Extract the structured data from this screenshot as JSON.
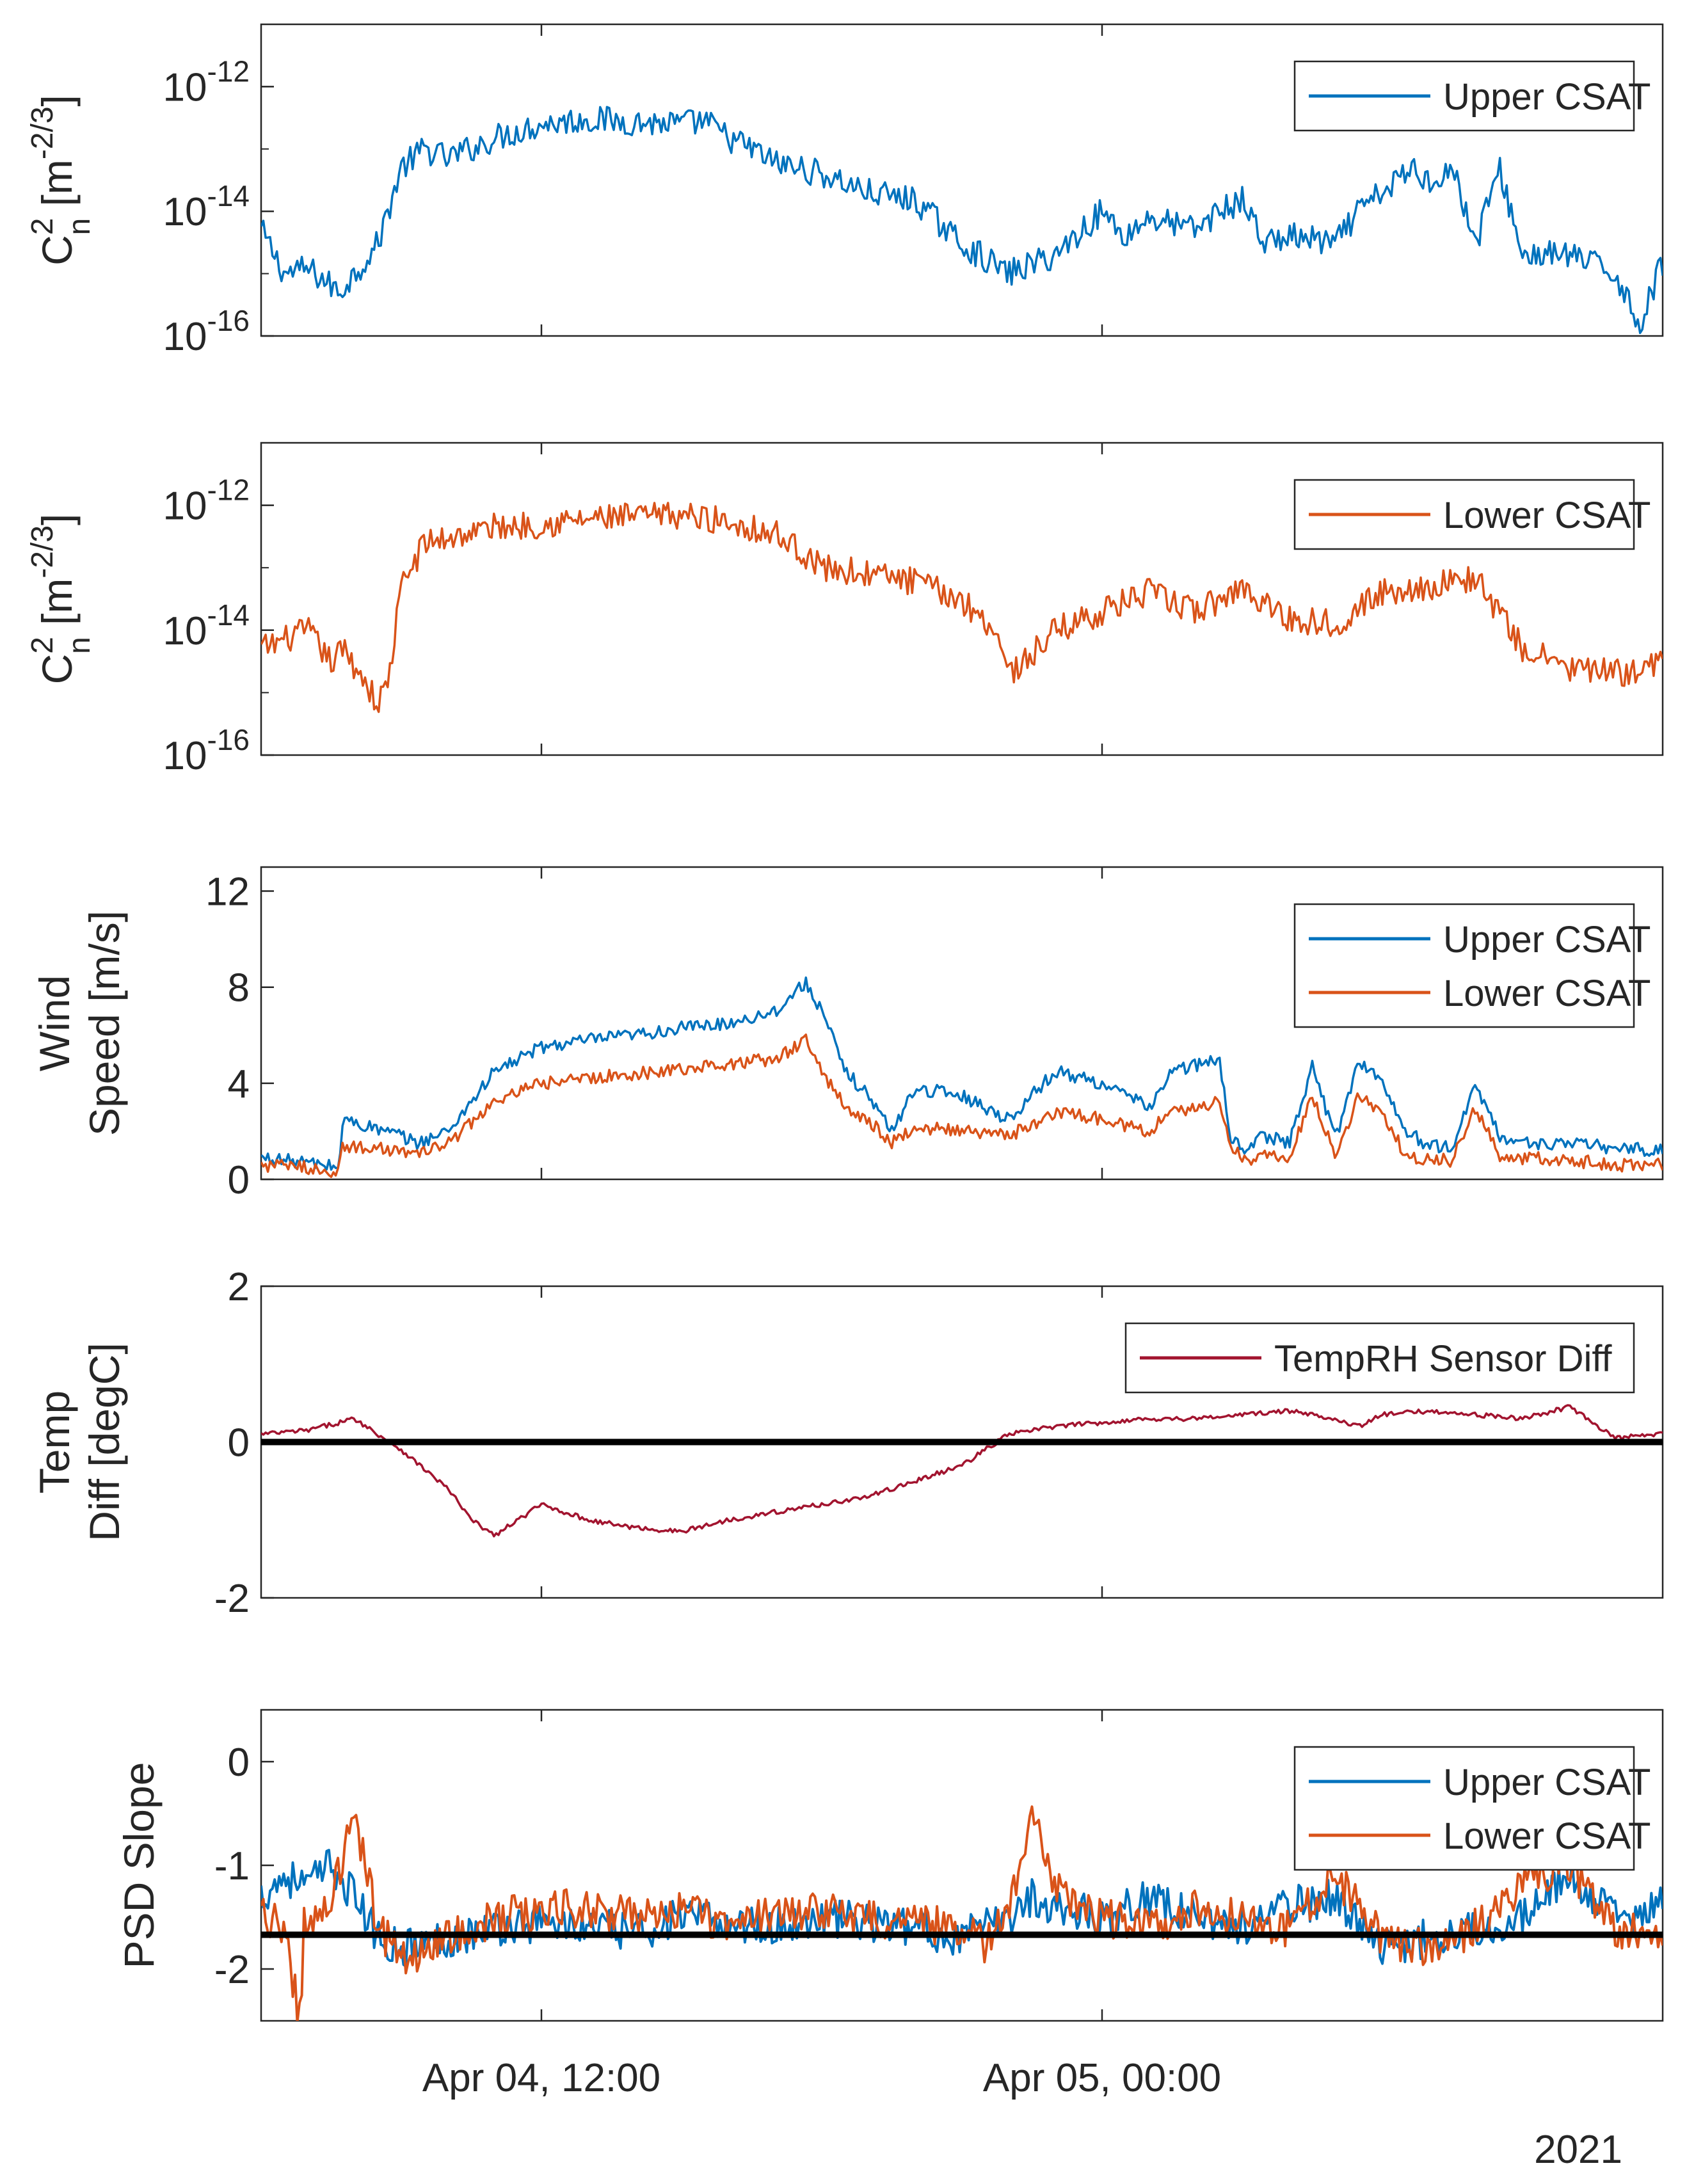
{
  "figure": {
    "year_label": "2021",
    "x_axis": {
      "start": "2021-04-04T06:00",
      "end": "2021-04-05T12:00",
      "ticks": [
        {
          "time": "2021-04-04T12:00",
          "label": "Apr 04, 12:00"
        },
        {
          "time": "2021-04-05T00:00",
          "label": "Apr 05, 00:00"
        }
      ]
    }
  },
  "chart_data": [
    {
      "type": "line",
      "ylabel": "C²ₙ [m⁻²ᐟ³]",
      "ylabel_parts": {
        "base": "C",
        "sup": "2",
        "sub": "n",
        "unit_open": " [m",
        "unit_sup": "-2/3",
        "unit_close": "]"
      },
      "yscale": "log",
      "ylim": [
        1e-16,
        1e-11
      ],
      "yticks": [
        {
          "value": 1e-12,
          "base": "10",
          "exp": "-12"
        },
        {
          "value": 1e-14,
          "base": "10",
          "exp": "-14"
        },
        {
          "value": 1e-16,
          "base": "10",
          "exp": "-16"
        }
      ],
      "legend": {
        "location": "top-right",
        "entries": [
          "Upper CSAT"
        ]
      },
      "series": [
        {
          "name": "Upper CSAT",
          "color": "#0072BD",
          "x": [
            "2021-04-04T06:00",
            "2021-04-04T06:30",
            "2021-04-04T07:00",
            "2021-04-04T07:20",
            "2021-04-04T07:40",
            "2021-04-04T08:00",
            "2021-04-04T08:30",
            "2021-04-04T09:00",
            "2021-04-04T09:30",
            "2021-04-04T10:00",
            "2021-04-04T11:00",
            "2021-04-04T12:00",
            "2021-04-04T13:00",
            "2021-04-04T14:00",
            "2021-04-04T15:00",
            "2021-04-04T15:30",
            "2021-04-04T16:00",
            "2021-04-04T16:30",
            "2021-04-04T17:00",
            "2021-04-04T18:00",
            "2021-04-04T19:00",
            "2021-04-04T20:00",
            "2021-04-04T21:00",
            "2021-04-04T22:00",
            "2021-04-04T23:00",
            "2021-04-05T00:00",
            "2021-04-05T00:30",
            "2021-04-05T01:00",
            "2021-04-05T02:00",
            "2021-04-05T02:30",
            "2021-04-05T03:00",
            "2021-04-05T03:30",
            "2021-04-05T04:00",
            "2021-04-05T05:00",
            "2021-04-05T05:30",
            "2021-04-05T06:00",
            "2021-04-05T06:40",
            "2021-04-05T07:00",
            "2021-04-05T07:30",
            "2021-04-05T08:00",
            "2021-04-05T08:30",
            "2021-04-05T09:00",
            "2021-04-05T10:00",
            "2021-04-05T11:00",
            "2021-04-05T11:30",
            "2021-04-05T12:00"
          ],
          "y": [
            5e-15,
            1e-15,
            1.2e-15,
            8e-16,
            5e-16,
            1e-15,
            3e-15,
            5e-14,
            1e-13,
            7e-14,
            1.5e-13,
            2.5e-13,
            3e-13,
            2.7e-13,
            2.5e-13,
            2.8e-13,
            1.5e-13,
            1e-13,
            6e-14,
            4e-14,
            2e-14,
            1.5e-14,
            3e-15,
            1e-15,
            2e-15,
            1e-14,
            4e-15,
            8e-15,
            5e-15,
            1e-14,
            1.5e-14,
            3e-15,
            4e-15,
            3e-15,
            1e-14,
            2e-14,
            5e-14,
            3e-14,
            5e-14,
            3e-15,
            5e-14,
            2e-15,
            2e-15,
            1e-15,
            1.5e-16,
            1.5e-15
          ]
        }
      ]
    },
    {
      "type": "line",
      "ylabel": "C²ₙ [m⁻²ᐟ³]",
      "ylabel_parts": {
        "base": "C",
        "sup": "2",
        "sub": "n",
        "unit_open": " [m",
        "unit_sup": "-2/3",
        "unit_close": "]"
      },
      "yscale": "log",
      "ylim": [
        1e-16,
        1e-11
      ],
      "yticks": [
        {
          "value": 1e-12,
          "base": "10",
          "exp": "-12"
        },
        {
          "value": 1e-14,
          "base": "10",
          "exp": "-14"
        },
        {
          "value": 1e-16,
          "base": "10",
          "exp": "-16"
        }
      ],
      "legend": {
        "location": "top-right",
        "entries": [
          "Lower CSAT"
        ]
      },
      "series": [
        {
          "name": "Lower CSAT",
          "color": "#D95319",
          "x": [
            "2021-04-04T06:00",
            "2021-04-04T06:30",
            "2021-04-04T07:00",
            "2021-04-04T07:30",
            "2021-04-04T07:45",
            "2021-04-04T08:15",
            "2021-04-04T08:30",
            "2021-04-04T08:45",
            "2021-04-04T09:00",
            "2021-04-04T09:30",
            "2021-04-04T10:00",
            "2021-04-04T11:00",
            "2021-04-04T12:00",
            "2021-04-04T13:00",
            "2021-04-04T14:00",
            "2021-04-04T15:00",
            "2021-04-04T16:00",
            "2021-04-04T17:00",
            "2021-04-04T17:30",
            "2021-04-04T18:00",
            "2021-04-04T19:00",
            "2021-04-04T20:00",
            "2021-04-04T21:00",
            "2021-04-04T21:45",
            "2021-04-04T22:00",
            "2021-04-04T22:30",
            "2021-04-04T23:00",
            "2021-04-05T00:00",
            "2021-04-05T01:00",
            "2021-04-05T02:00",
            "2021-04-05T02:30",
            "2021-04-05T03:00",
            "2021-04-05T04:00",
            "2021-04-05T05:00",
            "2021-04-05T06:00",
            "2021-04-05T07:00",
            "2021-04-05T08:00",
            "2021-04-05T09:00",
            "2021-04-05T10:00",
            "2021-04-05T11:00",
            "2021-04-05T12:00"
          ],
          "y": [
            5e-15,
            7e-15,
            1e-14,
            3e-15,
            5e-15,
            1.5e-15,
            6e-16,
            2e-15,
            5e-14,
            2.5e-13,
            3e-13,
            4.5e-13,
            5e-13,
            6e-13,
            6.5e-13,
            7e-13,
            5.5e-13,
            3.5e-13,
            2e-13,
            1e-13,
            8e-14,
            6e-14,
            3e-14,
            1e-14,
            2e-15,
            4e-15,
            1e-14,
            2e-14,
            4e-14,
            2e-14,
            3e-14,
            5e-14,
            1.5e-14,
            1.3e-14,
            4e-14,
            5e-14,
            7e-14,
            5e-15,
            2.5e-15,
            2e-15,
            3e-15
          ]
        }
      ]
    },
    {
      "type": "line",
      "ylabel_lines": [
        "Wind",
        "Speed [m/s]"
      ],
      "ylim": [
        0,
        13
      ],
      "yticks": [
        0,
        4,
        8,
        12
      ],
      "legend": {
        "location": "top-right",
        "entries": [
          "Upper CSAT",
          "Lower CSAT"
        ]
      },
      "series": [
        {
          "name": "Upper CSAT",
          "color": "#0072BD",
          "x": [
            "2021-04-04T06:00",
            "2021-04-04T07:00",
            "2021-04-04T07:40",
            "2021-04-04T07:45",
            "2021-04-04T09:00",
            "2021-04-04T09:20",
            "2021-04-04T10:00",
            "2021-04-04T11:00",
            "2021-04-04T12:00",
            "2021-04-04T13:00",
            "2021-04-04T14:00",
            "2021-04-04T15:00",
            "2021-04-04T16:00",
            "2021-04-04T17:00",
            "2021-04-04T17:40",
            "2021-04-04T18:00",
            "2021-04-04T18:30",
            "2021-04-04T19:00",
            "2021-04-04T19:30",
            "2021-04-04T20:00",
            "2021-04-04T21:00",
            "2021-04-04T22:00",
            "2021-04-04T23:00",
            "2021-04-05T00:00",
            "2021-04-05T01:00",
            "2021-04-05T01:30",
            "2021-04-05T02:30",
            "2021-04-05T02:45",
            "2021-04-05T03:00",
            "2021-04-05T03:30",
            "2021-04-05T04:00",
            "2021-04-05T04:30",
            "2021-04-05T05:00",
            "2021-04-05T05:30",
            "2021-04-05T06:00",
            "2021-04-05T06:30",
            "2021-04-05T07:00",
            "2021-04-05T07:30",
            "2021-04-05T08:00",
            "2021-04-05T08:30",
            "2021-04-05T09:00",
            "2021-04-05T10:00",
            "2021-04-05T11:00",
            "2021-04-05T12:00"
          ],
          "y": [
            0.9,
            0.7,
            0.5,
            2.5,
            1.8,
            1.5,
            2.0,
            4.5,
            5.5,
            5.8,
            6.0,
            6.3,
            6.5,
            7.0,
            8.2,
            7.0,
            4.5,
            3.5,
            2.0,
            3.8,
            3.5,
            2.5,
            4.5,
            4.0,
            3.0,
            4.5,
            5.0,
            1.8,
            1.3,
            1.8,
            1.5,
            4.7,
            1.7,
            5.0,
            4.0,
            2.0,
            1.4,
            1.3,
            4.0,
            1.8,
            1.5,
            1.5,
            1.3,
            1.2
          ]
        },
        {
          "name": "Lower CSAT",
          "color": "#D95319",
          "x": [
            "2021-04-04T06:00",
            "2021-04-04T07:00",
            "2021-04-04T07:40",
            "2021-04-04T07:45",
            "2021-04-04T09:00",
            "2021-04-04T09:20",
            "2021-04-04T10:00",
            "2021-04-04T11:00",
            "2021-04-04T12:00",
            "2021-04-04T13:00",
            "2021-04-04T14:00",
            "2021-04-04T15:00",
            "2021-04-04T16:00",
            "2021-04-04T17:00",
            "2021-04-04T17:40",
            "2021-04-04T18:00",
            "2021-04-04T18:30",
            "2021-04-04T19:00",
            "2021-04-04T19:30",
            "2021-04-04T20:00",
            "2021-04-04T21:00",
            "2021-04-04T22:00",
            "2021-04-04T23:00",
            "2021-04-05T00:00",
            "2021-04-05T01:00",
            "2021-04-05T01:30",
            "2021-04-05T02:30",
            "2021-04-05T02:45",
            "2021-04-05T03:00",
            "2021-04-05T03:30",
            "2021-04-05T04:00",
            "2021-04-05T04:30",
            "2021-04-05T05:00",
            "2021-04-05T05:30",
            "2021-04-05T06:00",
            "2021-04-05T06:30",
            "2021-04-05T07:00",
            "2021-04-05T07:30",
            "2021-04-05T08:00",
            "2021-04-05T08:30",
            "2021-04-05T09:00",
            "2021-04-05T10:00",
            "2021-04-05T11:00",
            "2021-04-05T12:00"
          ],
          "y": [
            0.6,
            0.5,
            0.3,
            1.4,
            1.2,
            1.0,
            1.5,
            3.2,
            4.0,
            4.2,
            4.4,
            4.6,
            4.8,
            5.0,
            5.8,
            4.5,
            3.0,
            2.5,
            1.5,
            2.2,
            2.0,
            1.8,
            2.8,
            2.5,
            2.0,
            2.8,
            3.2,
            1.5,
            0.8,
            1.0,
            0.9,
            3.5,
            1.0,
            3.5,
            2.8,
            1.0,
            0.8,
            0.8,
            3.0,
            1.0,
            0.9,
            0.8,
            0.6,
            0.6
          ]
        }
      ]
    },
    {
      "type": "line",
      "ylabel_lines": [
        "Temp",
        "Diff [degC]"
      ],
      "ylim": [
        -2,
        2
      ],
      "yticks": [
        -2,
        0,
        2
      ],
      "reference_line": 0,
      "legend": {
        "location": "top-right",
        "entries": [
          "TempRH Sensor Diff"
        ]
      },
      "series": [
        {
          "name": "TempRH Sensor Diff",
          "color": "#A2142F",
          "x": [
            "2021-04-04T06:00",
            "2021-04-04T07:00",
            "2021-04-04T08:00",
            "2021-04-04T08:30",
            "2021-04-04T09:00",
            "2021-04-04T10:00",
            "2021-04-04T10:30",
            "2021-04-04T11:00",
            "2021-04-04T12:00",
            "2021-04-04T13:00",
            "2021-04-04T14:00",
            "2021-04-04T15:00",
            "2021-04-04T16:00",
            "2021-04-04T17:00",
            "2021-04-04T18:00",
            "2021-04-04T19:00",
            "2021-04-04T20:00",
            "2021-04-04T21:00",
            "2021-04-04T21:30",
            "2021-04-04T22:00",
            "2021-04-04T23:00",
            "2021-04-05T00:00",
            "2021-04-05T01:00",
            "2021-04-05T02:00",
            "2021-04-05T03:00",
            "2021-04-05T04:00",
            "2021-04-05T05:00",
            "2021-04-05T05:30",
            "2021-04-05T06:00",
            "2021-04-05T07:00",
            "2021-04-05T08:00",
            "2021-04-05T09:00",
            "2021-04-05T10:00",
            "2021-04-05T11:00",
            "2021-04-05T12:00"
          ],
          "y": [
            0.1,
            0.15,
            0.3,
            0.1,
            -0.1,
            -0.6,
            -1.0,
            -1.2,
            -0.8,
            -1.0,
            -1.1,
            -1.15,
            -1.0,
            -0.9,
            -0.8,
            -0.7,
            -0.5,
            -0.3,
            -0.1,
            0.1,
            0.2,
            0.25,
            0.3,
            0.3,
            0.35,
            0.4,
            0.3,
            0.2,
            0.35,
            0.4,
            0.35,
            0.3,
            0.45,
            0.05,
            0.1
          ]
        }
      ]
    },
    {
      "type": "line",
      "ylabel": "PSD Slope",
      "ylim": [
        -2.5,
        0.5
      ],
      "yticks": [
        -2,
        -1,
        0
      ],
      "reference_line": -1.67,
      "legend": {
        "location": "top-right",
        "entries": [
          "Upper CSAT",
          "Lower CSAT"
        ]
      },
      "series": [
        {
          "name": "Upper CSAT",
          "color": "#0072BD",
          "x": [
            "2021-04-04T06:00",
            "2021-04-04T06:30",
            "2021-04-04T07:00",
            "2021-04-04T07:30",
            "2021-04-04T08:00",
            "2021-04-04T08:30",
            "2021-04-04T09:00",
            "2021-04-04T10:00",
            "2021-04-04T11:00",
            "2021-04-04T12:00",
            "2021-04-04T13:00",
            "2021-04-04T14:00",
            "2021-04-04T15:00",
            "2021-04-04T16:00",
            "2021-04-04T17:00",
            "2021-04-04T18:00",
            "2021-04-04T19:00",
            "2021-04-04T20:00",
            "2021-04-04T21:00",
            "2021-04-04T22:00",
            "2021-04-04T22:30",
            "2021-04-04T23:00",
            "2021-04-05T00:00",
            "2021-04-05T01:00",
            "2021-04-05T02:00",
            "2021-04-05T03:00",
            "2021-04-05T04:00",
            "2021-04-05T05:00",
            "2021-04-05T06:00",
            "2021-04-05T07:00",
            "2021-04-05T08:00",
            "2021-04-05T09:00",
            "2021-04-05T10:00",
            "2021-04-05T11:00",
            "2021-04-05T12:00"
          ],
          "y": [
            -1.3,
            -1.1,
            -1.2,
            -1.0,
            -1.3,
            -1.7,
            -1.8,
            -1.7,
            -1.6,
            -1.55,
            -1.6,
            -1.65,
            -1.5,
            -1.55,
            -1.6,
            -1.5,
            -1.55,
            -1.6,
            -1.7,
            -1.5,
            -1.3,
            -1.4,
            -1.5,
            -1.3,
            -1.5,
            -1.6,
            -1.4,
            -1.3,
            -1.8,
            -1.7,
            -1.6,
            -1.5,
            -1.1,
            -1.5,
            -1.4
          ]
        },
        {
          "name": "Lower CSAT",
          "color": "#D95319",
          "x": [
            "2021-04-04T06:00",
            "2021-04-04T06:30",
            "2021-04-04T06:50",
            "2021-04-04T06:55",
            "2021-04-04T07:00",
            "2021-04-04T07:30",
            "2021-04-04T08:00",
            "2021-04-04T08:30",
            "2021-04-04T09:00",
            "2021-04-04T10:00",
            "2021-04-04T11:00",
            "2021-04-04T12:00",
            "2021-04-04T13:00",
            "2021-04-04T14:00",
            "2021-04-04T15:00",
            "2021-04-04T16:00",
            "2021-04-04T17:00",
            "2021-04-04T18:00",
            "2021-04-04T19:00",
            "2021-04-04T20:00",
            "2021-04-04T21:00",
            "2021-04-04T21:30",
            "2021-04-04T22:00",
            "2021-04-04T22:30",
            "2021-04-04T23:00",
            "2021-04-05T00:00",
            "2021-04-05T01:00",
            "2021-04-05T02:00",
            "2021-04-05T03:00",
            "2021-04-05T04:00",
            "2021-04-05T05:00",
            "2021-04-05T06:00",
            "2021-04-05T07:00",
            "2021-04-05T08:00",
            "2021-04-05T09:00",
            "2021-04-05T10:00",
            "2021-04-05T11:00",
            "2021-04-05T12:00"
          ],
          "y": [
            -1.5,
            -1.6,
            -2.5,
            -1.6,
            -1.5,
            -1.3,
            -0.5,
            -1.6,
            -1.9,
            -1.7,
            -1.5,
            -1.45,
            -1.4,
            -1.5,
            -1.45,
            -1.55,
            -1.5,
            -1.45,
            -1.5,
            -1.55,
            -1.6,
            -1.8,
            -1.4,
            -0.55,
            -1.2,
            -1.5,
            -1.6,
            -1.4,
            -1.5,
            -1.6,
            -1.1,
            -1.7,
            -1.8,
            -1.6,
            -1.2,
            -1.0,
            -1.6,
            -1.7
          ]
        }
      ]
    }
  ]
}
